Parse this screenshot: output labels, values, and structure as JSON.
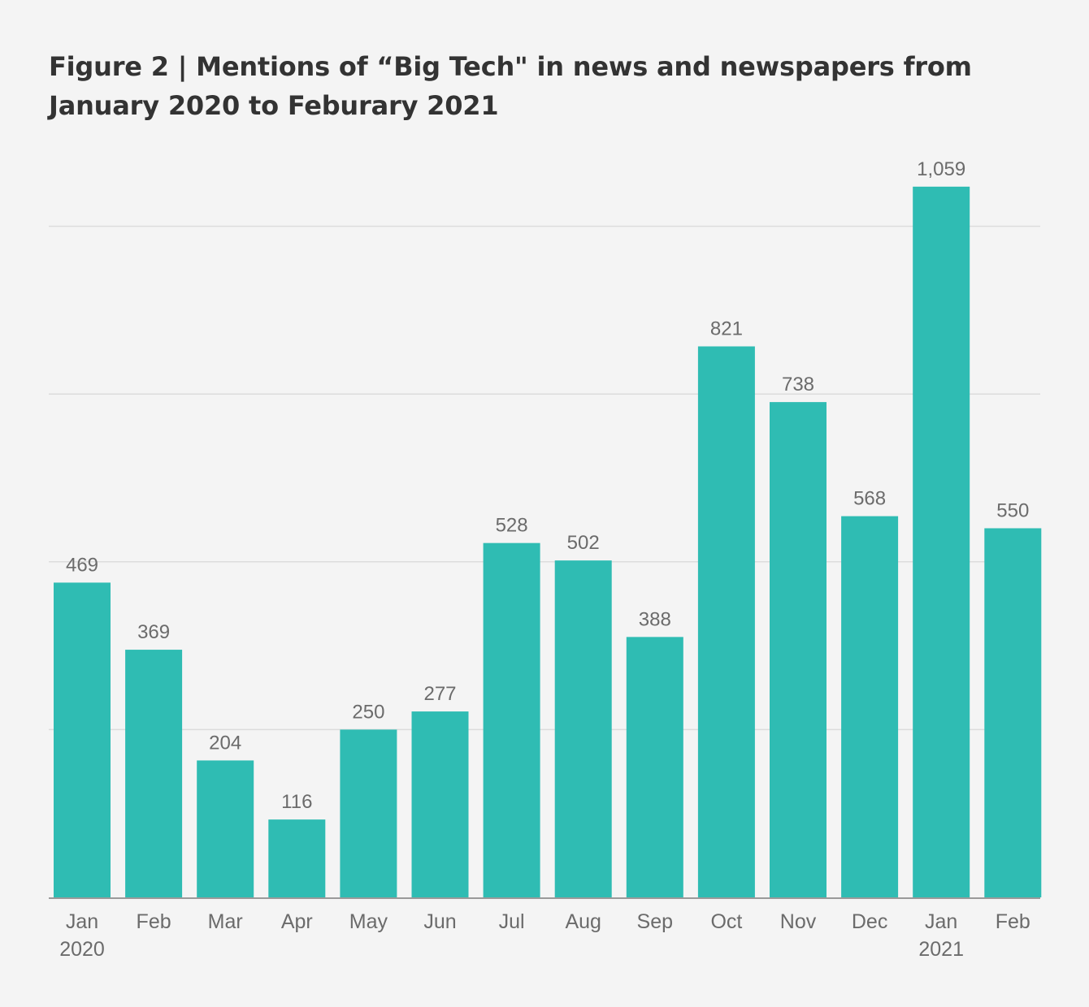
{
  "figure": {
    "title_line1": "Figure 2 | Mentions of “Big Tech\" in news and newspapers from",
    "title_line2": "January 2020 to Feburary 2021"
  },
  "chart_data": {
    "type": "bar",
    "title": "Figure 2 | Mentions of “Big Tech\" in news and newspapers from January 2020 to Feburary 2021",
    "categories": [
      "Jan",
      "Feb",
      "Mar",
      "Apr",
      "May",
      "Jun",
      "Jul",
      "Aug",
      "Sep",
      "Oct",
      "Nov",
      "Dec",
      "Jan",
      "Feb"
    ],
    "category_sublabels": [
      "2020",
      "",
      "",
      "",
      "",
      "",
      "",
      "",
      "",
      "",
      "",
      "",
      "2021",
      ""
    ],
    "values": [
      469,
      369,
      204,
      116,
      250,
      277,
      528,
      502,
      388,
      821,
      738,
      568,
      1059,
      550
    ],
    "value_labels": [
      "469",
      "369",
      "204",
      "116",
      "250",
      "277",
      "528",
      "502",
      "388",
      "821",
      "738",
      "568",
      "1,059",
      "550"
    ],
    "gridlines": [
      250,
      500,
      750,
      1000
    ],
    "ylim": [
      0,
      1000
    ],
    "xlabel": "",
    "ylabel": "",
    "grid": true,
    "bar_color": "#2fbcb3"
  }
}
